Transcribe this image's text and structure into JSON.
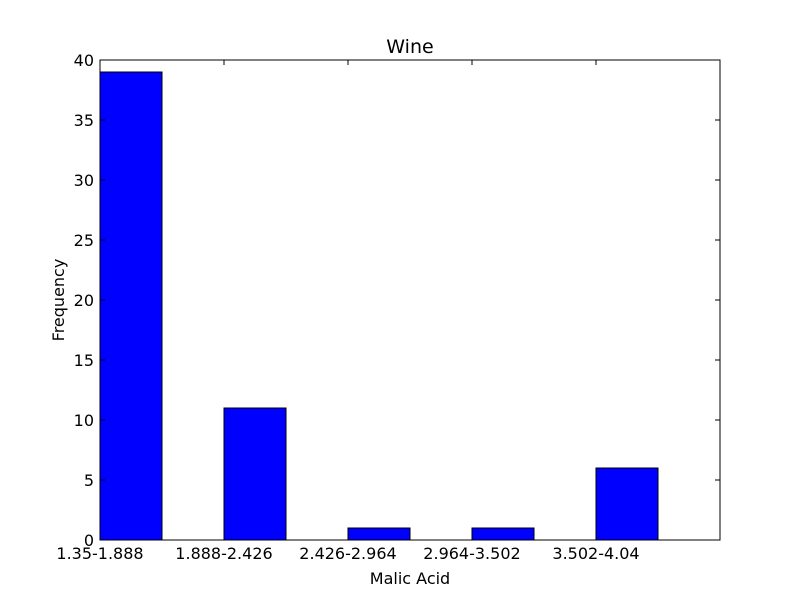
{
  "chart_data": {
    "type": "bar",
    "title": "Wine",
    "xlabel": "Malic Acid",
    "ylabel": "Frequency",
    "categories": [
      "1.35-1.888",
      "1.888-2.426",
      "2.426-2.964",
      "2.964-3.502",
      "3.502-4.04"
    ],
    "values": [
      39,
      11,
      1,
      1,
      6
    ],
    "ylim": [
      0,
      40
    ],
    "yticks": [
      0,
      5,
      10,
      15,
      20,
      25,
      30,
      35,
      40
    ],
    "grid": false,
    "bar_color": "#0000ff",
    "edge_color": "#000000"
  }
}
